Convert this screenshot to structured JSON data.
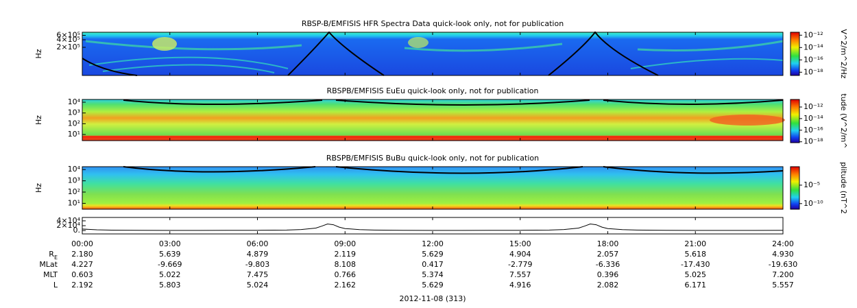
{
  "chart_data": [
    {
      "type": "spectrogram",
      "title": "RBSP-B/EMFISIS  HFR Spectra Data quick-look only, not for publication",
      "ylabel": "Hz",
      "log_y": true,
      "ylim": [
        15000,
        800000
      ],
      "yticks": [
        {
          "value": 600000,
          "label": "6×10⁵"
        },
        {
          "value": 400000,
          "label": "4×10⁵"
        },
        {
          "value": 200000,
          "label": "2×10⁵"
        }
      ],
      "colorbar_label": "V^2/m^2/Hz",
      "zlim": [
        3e-19,
        3e-12
      ],
      "zticks": [
        {
          "value": 1e-12,
          "label": "10⁻¹²"
        },
        {
          "value": 1e-14,
          "label": "10⁻¹⁴"
        },
        {
          "value": 1e-16,
          "label": "10⁻¹⁶"
        },
        {
          "value": 1e-18,
          "label": "10⁻¹⁸"
        }
      ]
    },
    {
      "type": "spectrogram",
      "title": "RBSPB/EMFISIS  EuEu quick-look only, not for publication",
      "ylabel": "Hz",
      "log_y": true,
      "ylim": [
        2.7,
        18000
      ],
      "yticks": [
        {
          "value": 10000,
          "label": "10⁴"
        },
        {
          "value": 1000,
          "label": "10³"
        },
        {
          "value": 100,
          "label": "10²"
        },
        {
          "value": 10,
          "label": "10¹"
        }
      ],
      "colorbar_label": "tude (V^2/m^",
      "zlim": [
        7e-19,
        2e-11
      ],
      "zticks": [
        {
          "value": 1e-12,
          "label": "10⁻¹²"
        },
        {
          "value": 1e-14,
          "label": "10⁻¹⁴"
        },
        {
          "value": 1e-16,
          "label": "10⁻¹⁶"
        },
        {
          "value": 1e-18,
          "label": "10⁻¹⁸"
        }
      ]
    },
    {
      "type": "spectrogram",
      "title": "RBSPB/EMFISIS  BuBu quick-look only, not for publication",
      "ylabel": "Hz",
      "log_y": true,
      "ylim": [
        3,
        18000
      ],
      "yticks": [
        {
          "value": 10000,
          "label": "10⁴"
        },
        {
          "value": 1000,
          "label": "10³"
        },
        {
          "value": 100,
          "label": "10²"
        },
        {
          "value": 10,
          "label": "10¹"
        }
      ],
      "colorbar_label": "plitude (nT^2",
      "zlim": [
        3e-12,
        1
      ],
      "zticks": [
        {
          "value": 1e-05,
          "label": "10⁻⁵"
        },
        {
          "value": 1e-10,
          "label": "10⁻¹⁰"
        }
      ]
    },
    {
      "type": "line",
      "color": "#000000",
      "xlabel": "2012-11-08 (313)",
      "xlim": [
        0,
        24
      ],
      "xticks": [
        {
          "value": 0,
          "label": "00:00"
        },
        {
          "value": 3,
          "label": "03:00"
        },
        {
          "value": 6,
          "label": "06:00"
        },
        {
          "value": 9,
          "label": "09:00"
        },
        {
          "value": 12,
          "label": "12:00"
        },
        {
          "value": 15,
          "label": "15:00"
        },
        {
          "value": 18,
          "label": "18:00"
        },
        {
          "value": 21,
          "label": "21:00"
        },
        {
          "value": 24,
          "label": "24:00"
        }
      ],
      "ylim": [
        -14000,
        54000
      ],
      "yticks": [
        {
          "value": 40000,
          "label": "4×10⁴"
        },
        {
          "value": 20000,
          "label": "2×10⁴"
        },
        {
          "value": 0,
          "label": "0."
        }
      ],
      "x": [
        0,
        0.5,
        1,
        2,
        3,
        4,
        5,
        6,
        7,
        7.5,
        8,
        8.2,
        8.4,
        8.6,
        8.8,
        9,
        9.5,
        10,
        11,
        12,
        13,
        14,
        15,
        16,
        16.5,
        17,
        17.2,
        17.4,
        17.6,
        17.8,
        18,
        18.5,
        19,
        20,
        21,
        22,
        23,
        24
      ],
      "values": [
        6000,
        3000,
        1500,
        700,
        500,
        500,
        600,
        900,
        2000,
        4000,
        10000,
        18000,
        27000,
        24000,
        14000,
        8000,
        3500,
        1800,
        800,
        500,
        500,
        600,
        900,
        2000,
        4000,
        10000,
        18000,
        27000,
        24000,
        14000,
        8000,
        3500,
        1800,
        800,
        500,
        500,
        500,
        600
      ]
    }
  ],
  "ephemeris": {
    "rows": [
      {
        "label": "R",
        "sub": "E",
        "values": [
          "2.180",
          "5.639",
          "4.879",
          "2.119",
          "5.629",
          "4.904",
          "2.057",
          "5.618",
          "4.930"
        ]
      },
      {
        "label": "MLat",
        "values": [
          "4.227",
          "-9.669",
          "-9.803",
          "8.108",
          "0.417",
          "-2.779",
          "-6.336",
          "-17.430",
          "-19.630"
        ]
      },
      {
        "label": "MLT",
        "values": [
          "0.603",
          "5.022",
          "7.475",
          "0.766",
          "5.374",
          "7.557",
          "0.396",
          "5.025",
          "7.200"
        ]
      },
      {
        "label": "L",
        "values": [
          "2.192",
          "5.803",
          "5.024",
          "2.162",
          "5.629",
          "4.916",
          "2.082",
          "6.171",
          "5.557"
        ]
      }
    ]
  }
}
